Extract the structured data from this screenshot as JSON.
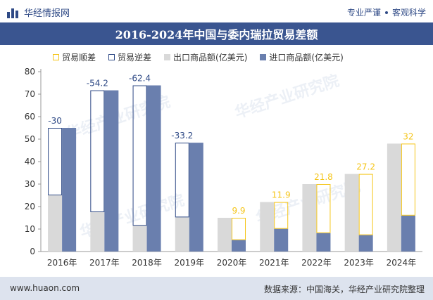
{
  "header": {
    "brand": "华经情报网",
    "slogan_left": "专业严谨",
    "slogan_right": "客观科学"
  },
  "watermark_text": "华经产业研究院",
  "footer": {
    "url": "www.huaon.com",
    "source": "数据来源：中国海关，华经产业研究院整理"
  },
  "colors": {
    "title_bar": "#3a5590",
    "surplus": "#f5c518",
    "deficit": "#2f4a86",
    "export": "#d9d9d9",
    "import": "#6a7fae",
    "footer_bg": "#dde3ee"
  },
  "chart_data": {
    "type": "bar",
    "title": "2016-2024年中国与委内瑞拉贸易差额",
    "categories": [
      "2016年",
      "2017年",
      "2018年",
      "2019年",
      "2020年",
      "2021年",
      "2022年",
      "2023年",
      "2024年"
    ],
    "series": [
      {
        "name": "出口商品额(亿美元)",
        "values": [
          25,
          17.5,
          11.5,
          15.2,
          15,
          22,
          30,
          34.5,
          48
        ]
      },
      {
        "name": "进口商品额(亿美元)",
        "values": [
          55,
          71.7,
          73.9,
          48.4,
          5.1,
          10.1,
          8.2,
          7.3,
          16
        ]
      }
    ],
    "balance": {
      "surplus_name": "贸易顺差",
      "deficit_name": "贸易逆差",
      "values": [
        -30,
        -54.2,
        -62.4,
        -33.2,
        9.9,
        11.9,
        21.8,
        27.2,
        32
      ],
      "labels": [
        "-30",
        "-54.2",
        "-62.4",
        "-33.2",
        "9.9",
        "11.9",
        "21.8",
        "27.2",
        "32"
      ]
    },
    "ylim": [
      0,
      80
    ],
    "yticks": [
      "0",
      "10",
      "20",
      "30",
      "40",
      "50",
      "60",
      "70",
      "80"
    ],
    "grid": false,
    "legend_position": "top"
  }
}
